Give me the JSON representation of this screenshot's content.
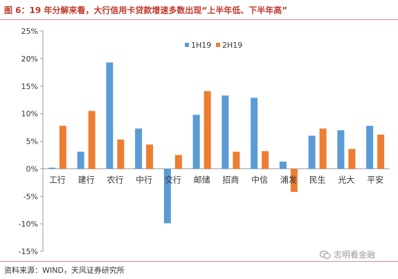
{
  "header": {
    "title": "图 6：19 年分解来看，大行信用卡贷款增速多数出现“上半年低、下半年高”"
  },
  "footer": {
    "source": "资料来源：WIND，天风证券研究所",
    "watermark": "志明看金融",
    "watermark_icon": "wechat-icon"
  },
  "colors": {
    "series_1": "#5b9bd5",
    "series_2": "#ed7d31",
    "accent": "#c0392b"
  },
  "chart_data": {
    "type": "bar",
    "title": "",
    "xlabel": "",
    "ylabel": "",
    "ylim": [
      -15,
      25
    ],
    "yticks": [
      -15,
      -10,
      -5,
      0,
      5,
      10,
      15,
      20,
      25
    ],
    "ytick_labels": [
      "-15%",
      "-10%",
      "-5%",
      "0%",
      "5%",
      "10%",
      "15%",
      "20%",
      "25%"
    ],
    "grid": false,
    "legend": "top-center",
    "categories": [
      "工行",
      "建行",
      "农行",
      "中行",
      "交行",
      "邮储",
      "招商",
      "中信",
      "浦发",
      "民生",
      "光大",
      "平安"
    ],
    "series": [
      {
        "name": "1H19",
        "values": [
          0.2,
          3.1,
          19.3,
          7.3,
          -9.9,
          9.8,
          13.3,
          12.9,
          1.3,
          6.0,
          7.0,
          7.8
        ]
      },
      {
        "name": "2H19",
        "values": [
          7.8,
          10.5,
          5.3,
          4.4,
          2.5,
          14.1,
          3.1,
          3.2,
          -4.2,
          7.3,
          3.6,
          6.2
        ]
      }
    ]
  }
}
